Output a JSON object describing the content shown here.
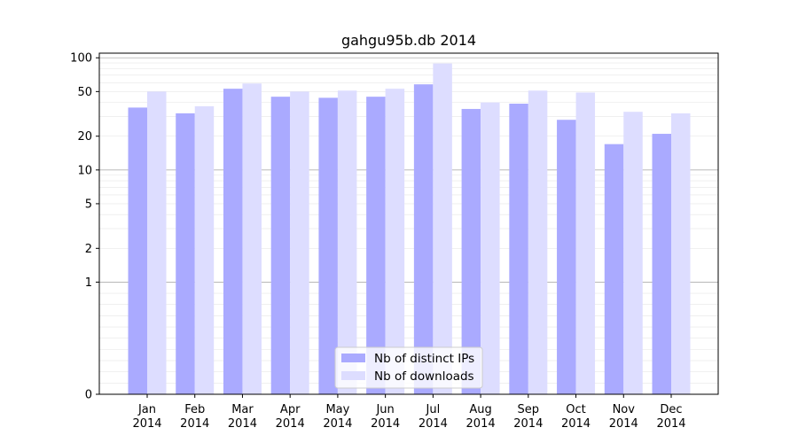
{
  "chart_data": {
    "type": "bar",
    "title": "gahgu95b.db 2014",
    "xlabel": "",
    "ylabel": "",
    "y_scale": "symlog",
    "ylim": [
      0,
      110
    ],
    "y_ticks": [
      0,
      1,
      2,
      5,
      10,
      20,
      50,
      100
    ],
    "y_tick_labels": [
      "0",
      "1",
      "2",
      "5",
      "10",
      "20",
      "50",
      "100"
    ],
    "categories": [
      "Jan\n2014",
      "Feb\n2014",
      "Mar\n2014",
      "Apr\n2014",
      "May\n2014",
      "Jun\n2014",
      "Jul\n2014",
      "Aug\n2014",
      "Sep\n2014",
      "Oct\n2014",
      "Nov\n2014",
      "Dec\n2014"
    ],
    "series": [
      {
        "name": "Nb of distinct IPs",
        "color": "#aaaaff",
        "values": [
          36,
          32,
          53,
          45,
          44,
          45,
          58,
          35,
          39,
          28,
          17,
          21
        ]
      },
      {
        "name": "Nb of downloads",
        "color": "#ddddff",
        "values": [
          50,
          37,
          59,
          50,
          51,
          53,
          89,
          40,
          51,
          49,
          33,
          32
        ]
      }
    ],
    "grid": true,
    "legend_position": "bottom-center"
  }
}
